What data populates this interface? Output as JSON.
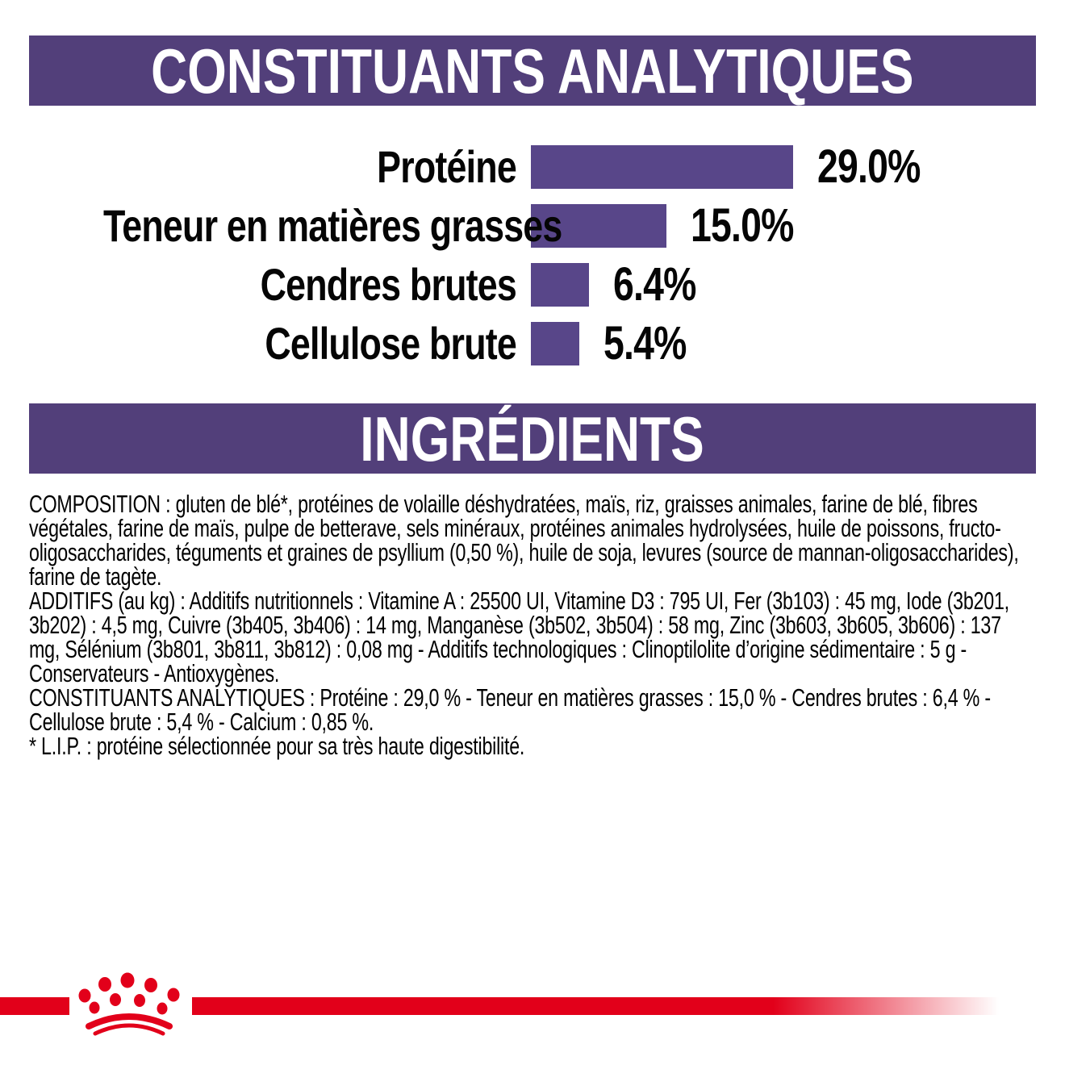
{
  "section_analytics": {
    "title": "CONSTITUANTS ANALYTIQUES"
  },
  "chart_data": {
    "type": "bar",
    "orientation": "horizontal",
    "title": "CONSTITUANTS ANALYTIQUES",
    "categories": [
      "Protéine",
      "Teneur en matières grasses",
      "Cendres brutes",
      "Cellulose brute"
    ],
    "values": [
      29.0,
      15.0,
      6.4,
      5.4
    ],
    "value_labels": [
      "29.0%",
      "15.0%",
      "6.4%",
      "5.4%"
    ],
    "xlim": [
      0,
      29
    ],
    "grid": false,
    "legend": "none",
    "axes_hidden": true,
    "bar_color": "#584689",
    "label_color": "#050505"
  },
  "section_ingredients": {
    "title": "INGRÉDIENTS"
  },
  "ingredients": {
    "paragraphs": [
      "COMPOSITION : gluten de blé*, protéines de volaille déshydratées, maïs, riz, graisses animales, farine de blé, fibres végétales, farine de maïs, pulpe de betterave, sels minéraux, protéines animales hydrolysées, huile de poissons, fructo-oligosaccharides, téguments et graines de psyllium (0,50 %), huile de soja, levures (source de mannan-oligosaccharides), farine de tagète.",
      "ADDITIFS (au kg) : Additifs nutritionnels : Vitamine A : 25500 UI, Vitamine D3 : 795 UI, Fer (3b103) : 45 mg, Iode (3b201, 3b202) : 4,5 mg, Cuivre (3b405, 3b406) : 14 mg, Manganèse (3b502, 3b504) : 58 mg, Zinc (3b603, 3b605, 3b606) : 137 mg, Sélénium (3b801, 3b811, 3b812) : 0,08 mg - Additifs technologiques : Clinoptilolite d’origine sédimentaire : 5 g - Conservateurs - Antioxygènes.",
      "CONSTITUANTS ANALYTIQUES : Protéine : 29,0 % - Teneur en matières grasses : 15,0 % - Cendres brutes : 6,4 % - Cellulose brute : 5,4 % - Calcium : 0,85 %.",
      "* L.I.P. : protéine sélectionnée pour sa très haute digestibilité."
    ]
  },
  "theme": {
    "banner_purple": "#523f7a",
    "bar_purple": "#584689",
    "brand_red": "#e2001a",
    "text_black": "#000000",
    "background_white": "#ffffff"
  }
}
